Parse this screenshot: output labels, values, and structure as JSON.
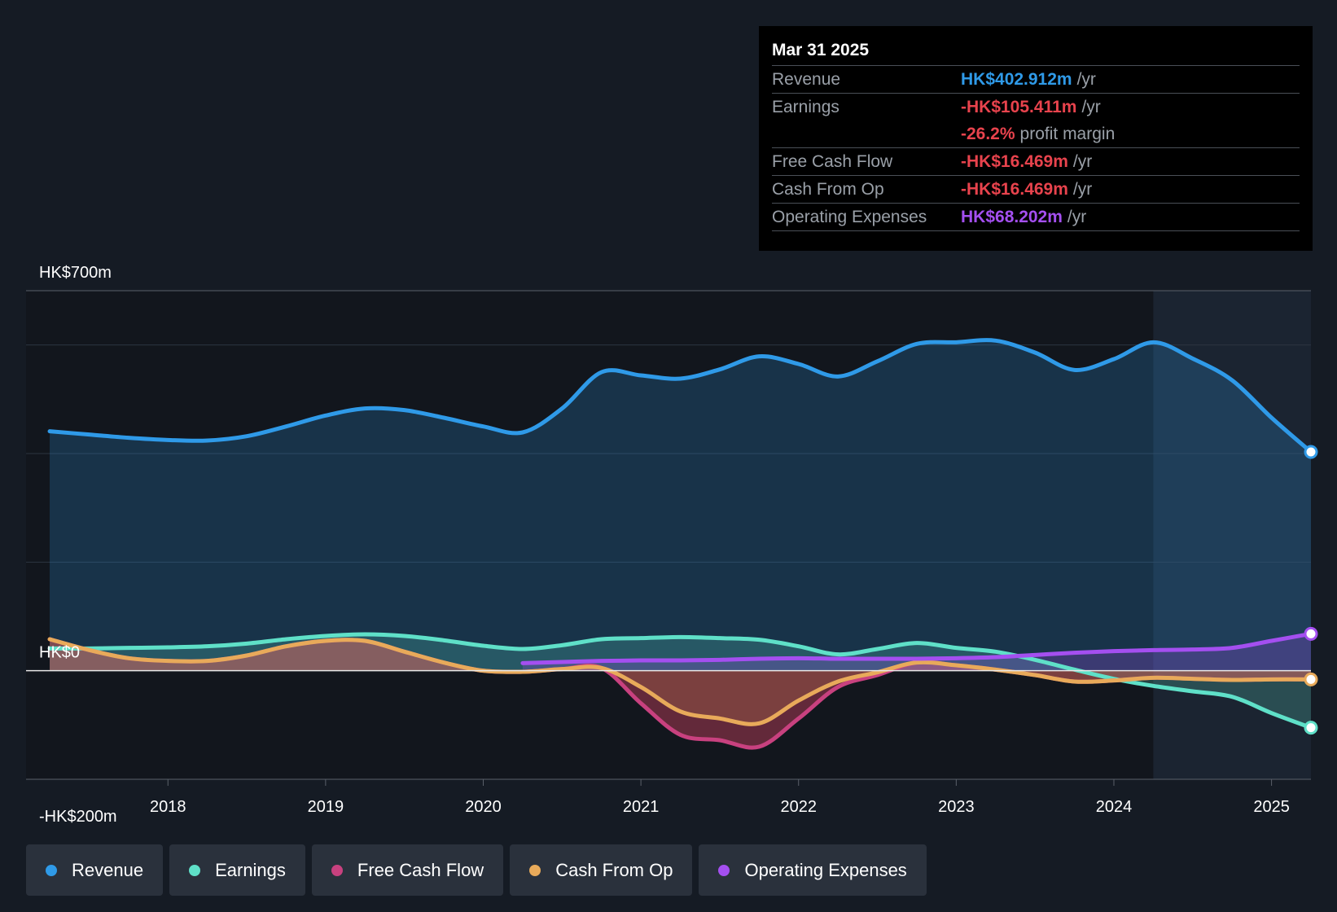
{
  "tooltip": {
    "date": "Mar 31 2025",
    "rows": [
      {
        "label": "Revenue",
        "value": "HK$402.912m",
        "unit": "/yr",
        "color": "#2f9ae8"
      },
      {
        "label": "Earnings",
        "value": "-HK$105.411m",
        "unit": "/yr",
        "color": "#e8434d"
      },
      {
        "label": "",
        "value": "-26.2%",
        "unit": "profit margin",
        "color": "#e8434d"
      },
      {
        "label": "Free Cash Flow",
        "value": "-HK$16.469m",
        "unit": "/yr",
        "color": "#e8434d"
      },
      {
        "label": "Cash From Op",
        "value": "-HK$16.469m",
        "unit": "/yr",
        "color": "#e8434d"
      },
      {
        "label": "Operating Expenses",
        "value": "HK$68.202m",
        "unit": "/yr",
        "color": "#a44ff0"
      }
    ]
  },
  "legend": [
    {
      "label": "Revenue",
      "color": "#2f9ae8"
    },
    {
      "label": "Earnings",
      "color": "#5fe0c8"
    },
    {
      "label": "Free Cash Flow",
      "color": "#c8417f"
    },
    {
      "label": "Cash From Op",
      "color": "#e8aa5a"
    },
    {
      "label": "Operating Expenses",
      "color": "#a44ff0"
    }
  ],
  "chart_data": {
    "type": "line",
    "title": "",
    "xlabel": "",
    "ylabel": "",
    "y_axis_labels": {
      "top": "HK$700m",
      "zero": "HK$0",
      "bottom": "-HK$200m"
    },
    "ylim": [
      -200,
      700
    ],
    "xlim": [
      2017.1,
      2025.25
    ],
    "x_ticks": [
      2018,
      2019,
      2020,
      2021,
      2022,
      2023,
      2024,
      2025
    ],
    "x_tick_labels": [
      "2018",
      "2019",
      "2020",
      "2021",
      "2022",
      "2023",
      "2024",
      "2025"
    ],
    "forecast_start": 2024.25,
    "series": [
      {
        "name": "Revenue",
        "color": "#2f9ae8",
        "x": [
          2017.25,
          2017.5,
          2017.75,
          2018,
          2018.25,
          2018.5,
          2018.75,
          2019,
          2019.25,
          2019.5,
          2019.75,
          2020,
          2020.25,
          2020.5,
          2020.75,
          2021,
          2021.25,
          2021.5,
          2021.75,
          2022,
          2022.25,
          2022.5,
          2022.75,
          2023,
          2023.25,
          2023.5,
          2023.75,
          2024,
          2024.25,
          2024.5,
          2024.75,
          2025,
          2025.25
        ],
        "values": [
          441,
          435,
          429,
          425,
          424,
          432,
          450,
          470,
          483,
          480,
          466,
          450,
          439,
          483,
          550,
          544,
          538,
          555,
          579,
          565,
          542,
          570,
          602,
          605,
          608,
          586,
          554,
          574,
          605,
          575,
          535,
          466,
          403
        ]
      },
      {
        "name": "Earnings",
        "color": "#5fe0c8",
        "x": [
          2017.25,
          2017.5,
          2017.75,
          2018,
          2018.25,
          2018.5,
          2018.75,
          2019,
          2019.25,
          2019.5,
          2019.75,
          2020,
          2020.25,
          2020.5,
          2020.75,
          2021,
          2021.25,
          2021.5,
          2021.75,
          2022,
          2022.25,
          2022.5,
          2022.75,
          2023,
          2023.25,
          2023.5,
          2023.75,
          2024,
          2024.25,
          2024.5,
          2024.75,
          2025,
          2025.25
        ],
        "values": [
          41,
          41,
          42,
          43,
          45,
          50,
          58,
          64,
          67,
          64,
          56,
          46,
          40,
          47,
          58,
          60,
          62,
          60,
          57,
          45,
          30,
          40,
          51,
          42,
          35,
          20,
          2,
          -15,
          -28,
          -38,
          -48,
          -78,
          -105
        ]
      },
      {
        "name": "Free Cash Flow",
        "color": "#c8417f",
        "x": [
          2017.25,
          2017.5,
          2017.75,
          2018,
          2018.25,
          2018.5,
          2018.75,
          2019,
          2019.25,
          2019.5,
          2019.75,
          2020,
          2020.25,
          2020.5,
          2020.75,
          2021,
          2021.25,
          2021.5,
          2021.75,
          2022,
          2022.25,
          2022.5,
          2022.75,
          2023,
          2023.25,
          2023.5,
          2023.75,
          2024,
          2024.25,
          2024.5,
          2024.75,
          2025,
          2025.25
        ],
        "values": [
          58,
          38,
          23,
          18,
          18,
          28,
          45,
          55,
          55,
          35,
          15,
          0,
          -2,
          3,
          5,
          -60,
          -118,
          -128,
          -140,
          -88,
          -30,
          -8,
          15,
          10,
          2,
          -8,
          -20,
          -18,
          -13,
          -15,
          -17,
          -16,
          -16
        ]
      },
      {
        "name": "Cash From Op",
        "color": "#e8aa5a",
        "x": [
          2017.25,
          2017.5,
          2017.75,
          2018,
          2018.25,
          2018.5,
          2018.75,
          2019,
          2019.25,
          2019.5,
          2019.75,
          2020,
          2020.25,
          2020.5,
          2020.75,
          2021,
          2021.25,
          2021.5,
          2021.75,
          2022,
          2022.25,
          2022.5,
          2022.75,
          2023,
          2023.25,
          2023.5,
          2023.75,
          2024,
          2024.25,
          2024.5,
          2024.75,
          2025,
          2025.25
        ],
        "values": [
          58,
          38,
          23,
          18,
          18,
          28,
          45,
          55,
          55,
          35,
          15,
          0,
          -2,
          3,
          5,
          -30,
          -75,
          -88,
          -97,
          -55,
          -20,
          -3,
          15,
          10,
          2,
          -8,
          -20,
          -18,
          -13,
          -15,
          -17,
          -16,
          -16
        ]
      },
      {
        "name": "Operating Expenses",
        "color": "#a44ff0",
        "x": [
          2020.25,
          2020.5,
          2020.75,
          2021,
          2021.25,
          2021.5,
          2021.75,
          2022,
          2022.25,
          2022.5,
          2022.75,
          2023,
          2023.25,
          2023.5,
          2023.75,
          2024,
          2024.25,
          2024.5,
          2024.75,
          2025,
          2025.25
        ],
        "values": [
          14,
          16,
          18,
          19,
          19,
          20,
          22,
          23,
          22,
          22,
          22,
          23,
          25,
          29,
          33,
          36,
          38,
          39,
          42,
          55,
          68
        ]
      }
    ]
  }
}
